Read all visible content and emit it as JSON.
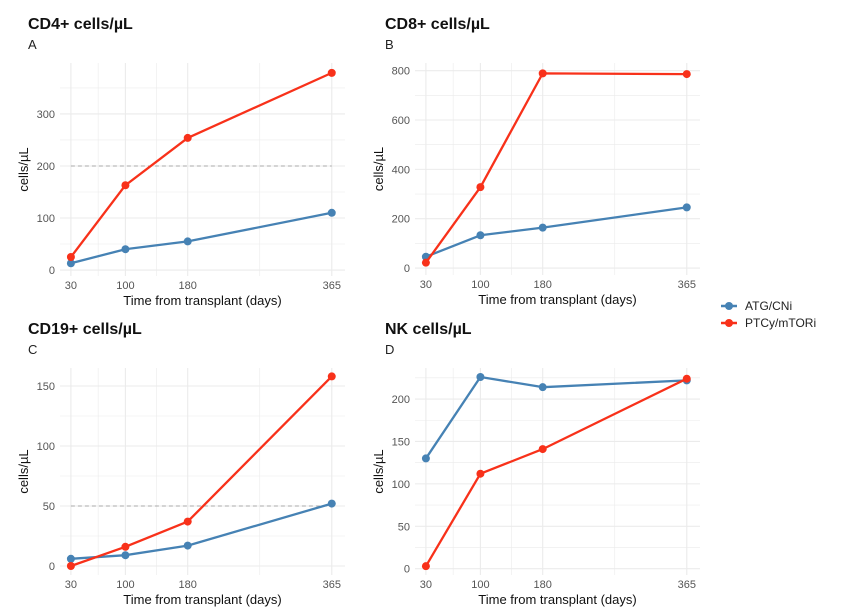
{
  "chart_data": [
    {
      "type": "line",
      "title": "CD4+ cells/µL",
      "tag": "A",
      "xlabel": "Time from transplant (days)",
      "ylabel": "cells/µL",
      "x": [
        30,
        100,
        180,
        365
      ],
      "xticks": [
        "30",
        "100",
        "180",
        "365"
      ],
      "yticks": [
        0,
        100,
        200,
        300
      ],
      "ylim": [
        -11.5,
        398
      ],
      "reference_line": 200,
      "grid": true,
      "series": [
        {
          "name": "ATG/CNi",
          "values": [
            13,
            40,
            55,
            110
          ]
        },
        {
          "name": "PTCy/mTORi",
          "values": [
            25,
            163,
            254,
            379
          ]
        }
      ]
    },
    {
      "type": "line",
      "title": "CD8+ cells/µL",
      "tag": "B",
      "xlabel": "Time from transplant (days)",
      "ylabel": "cells/µL",
      "x": [
        30,
        100,
        180,
        365
      ],
      "xticks": [
        "30",
        "100",
        "180",
        "365"
      ],
      "yticks": [
        0,
        200,
        400,
        600,
        800
      ],
      "ylim": [
        -28,
        831
      ],
      "reference_line": null,
      "grid": true,
      "series": [
        {
          "name": "ATG/CNi",
          "values": [
            46,
            133,
            164,
            246
          ]
        },
        {
          "name": "PTCy/mTORi",
          "values": [
            22,
            328,
            789,
            786
          ]
        }
      ]
    },
    {
      "type": "line",
      "title": "CD19+ cells/µL",
      "tag": "C",
      "xlabel": "Time from transplant (days)",
      "ylabel": "cells/µL",
      "x": [
        30,
        100,
        180,
        365
      ],
      "xticks": [
        "30",
        "100",
        "180",
        "365"
      ],
      "yticks": [
        0,
        50,
        100,
        150
      ],
      "ylim": [
        -7.5,
        165
      ],
      "reference_line": 50,
      "grid": true,
      "series": [
        {
          "name": "ATG/CNi",
          "values": [
            6,
            9,
            17,
            52
          ]
        },
        {
          "name": "PTCy/mTORi",
          "values": [
            0,
            16,
            37,
            158
          ]
        }
      ]
    },
    {
      "type": "line",
      "title": "NK cells/µL",
      "tag": "D",
      "xlabel": "Time from transplant (days)",
      "ylabel": "cells/µL",
      "x": [
        30,
        100,
        180,
        365
      ],
      "xticks": [
        "30",
        "100",
        "180",
        "365"
      ],
      "yticks": [
        0,
        50,
        100,
        150,
        200
      ],
      "ylim": [
        -7.4,
        236.6
      ],
      "reference_line": null,
      "grid": true,
      "series": [
        {
          "name": "ATG/CNi",
          "values": [
            130,
            226,
            214,
            222
          ]
        },
        {
          "name": "PTCy/mTORi",
          "values": [
            3,
            112,
            141,
            224
          ]
        }
      ]
    }
  ],
  "legend": {
    "placement": "right",
    "items": [
      {
        "label": "ATG/CNi",
        "color": "#4682b4"
      },
      {
        "label": "PTCy/mTORi",
        "color": "#f8311a"
      }
    ]
  },
  "colors": {
    "ATG/CNi": "#4682b4",
    "PTCy/mTORi": "#f8311a",
    "grid": "#ebebeb",
    "reference": "#aaaaaa"
  }
}
